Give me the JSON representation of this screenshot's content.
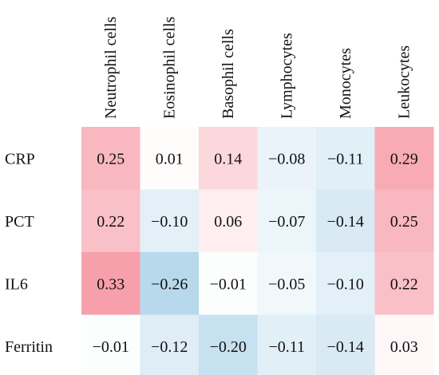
{
  "chart_data": {
    "type": "heatmap",
    "title": "",
    "xlabel": "",
    "ylabel": "",
    "columns": [
      "Neutrophil cells",
      "Eosinophil cells",
      "Basophil cells",
      "Lymphocytes",
      "Monocytes",
      "Leukocytes"
    ],
    "rows": [
      "CRP",
      "PCT",
      "IL6",
      "Ferritin"
    ],
    "values": [
      [
        0.25,
        0.01,
        0.14,
        -0.08,
        -0.11,
        0.29
      ],
      [
        0.22,
        -0.1,
        0.06,
        -0.07,
        -0.14,
        0.25
      ],
      [
        0.33,
        -0.26,
        -0.01,
        -0.05,
        -0.1,
        0.22
      ],
      [
        -0.01,
        -0.12,
        -0.2,
        -0.11,
        -0.14,
        0.03
      ]
    ],
    "cell_labels": [
      [
        "0.25",
        "0.01",
        "0.14",
        "−0.08",
        "−0.11",
        "0.29"
      ],
      [
        "0.22",
        "−0.10",
        "0.06",
        "−0.07",
        "−0.14",
        "0.25"
      ],
      [
        "0.33",
        "−0.26",
        "−0.01",
        "−0.05",
        "−0.10",
        "0.22"
      ],
      [
        "−0.01",
        "−0.12",
        "−0.20",
        "−0.11",
        "−0.14",
        "0.03"
      ]
    ],
    "color_scale": {
      "negative": "#9fcbe6",
      "neutral": "#ffffff",
      "positive": "#f79aa6",
      "range": [
        -0.35,
        0.35
      ]
    },
    "legend": "none",
    "grid": false
  }
}
